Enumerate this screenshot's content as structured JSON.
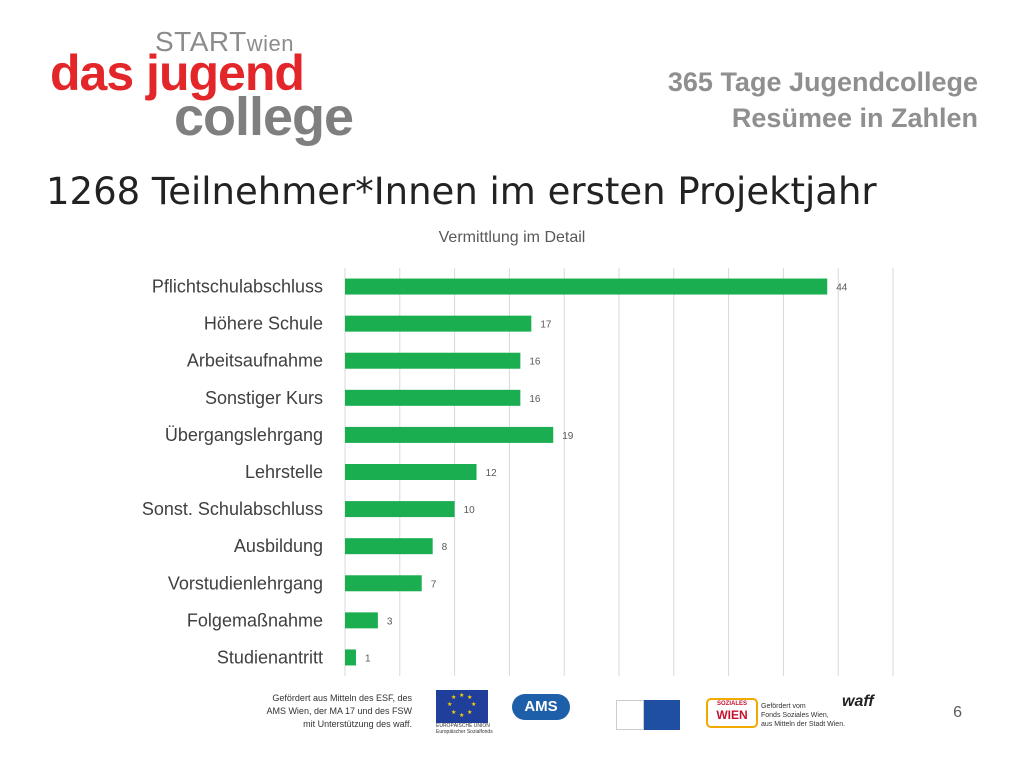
{
  "logo": {
    "start": "START",
    "wien": "wien",
    "line1": "das jugend",
    "line2": "college"
  },
  "subtitle": {
    "line1": "365 Tage Jugendcollege",
    "line2": "Resümee in Zahlen"
  },
  "main_title": "1268 Teilnehmer*Innen im ersten Projektjahr",
  "colors": {
    "bar": "#1bae50",
    "grid": "#d9d9d9",
    "brand_red": "#e3262a",
    "brand_gray": "#7f7f7f"
  },
  "chart_data": {
    "type": "bar",
    "orientation": "horizontal",
    "title": "Vermittlung im Detail",
    "categories": [
      "Pflichtschulabschluss",
      "Höhere Schule",
      "Arbeitsaufnahme",
      "Sonstiger Kurs",
      "Übergangslehrgang",
      "Lehrstelle",
      "Sonst. Schulabschluss",
      "Ausbildung",
      "Vorstudienlehrgang",
      "Folgemaßnahme",
      "Studienantritt"
    ],
    "values": [
      44,
      17,
      16,
      16,
      19,
      12,
      10,
      8,
      7,
      3,
      1
    ],
    "xlim": [
      0,
      50
    ],
    "grid": true,
    "data_labels": true
  },
  "footer": {
    "text_line1": "Gefördert aus Mitteln des ESF, des",
    "text_line2": "AMS Wien, der MA 17 und des FSW",
    "text_line3": "mit Unterstützung des waff.",
    "eu_caption1": "EUROPÄISCHE UNION",
    "eu_caption2": "Europäischer Sozialfonds",
    "ams": "AMS",
    "soz_top": "SOZIALES",
    "soz_main": "WIEN",
    "soz_text1": "Gefördert vom",
    "soz_text2": "Fonds Soziales Wien,",
    "soz_text3": "aus Mitteln der Stadt Wien.",
    "waff": "waff"
  },
  "page_number": "6"
}
